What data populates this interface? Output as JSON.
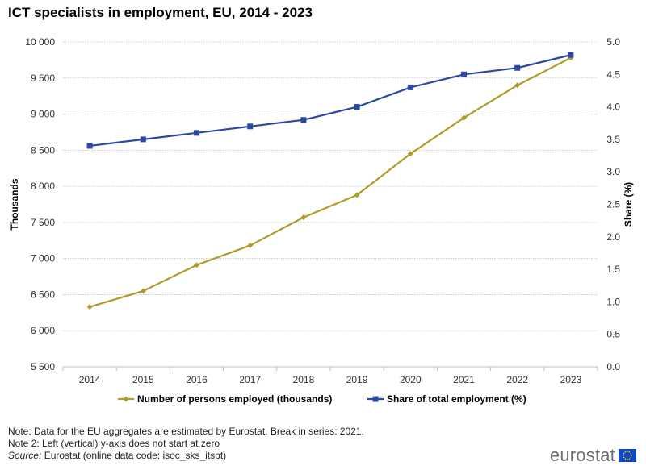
{
  "title": "ICT specialists in employment, EU, 2014 - 2023",
  "colors": {
    "persons": "#b09c2d",
    "share": "#2b48a4",
    "grid": "#bfbfbf",
    "flag": "#0e47cb",
    "logo_text": "#6d6e70"
  },
  "chart_data": {
    "type": "line",
    "categories": [
      "2014",
      "2015",
      "2016",
      "2017",
      "2018",
      "2019",
      "2020",
      "2021",
      "2022",
      "2023"
    ],
    "series": [
      {
        "name": "Number of persons employed (thousands)",
        "axis": "left",
        "marker": "diamond",
        "values": [
          6330,
          6550,
          6910,
          7180,
          7570,
          7880,
          8450,
          8950,
          9400,
          9780
        ]
      },
      {
        "name": "Share of total employment (%)",
        "axis": "right",
        "marker": "square",
        "values": [
          3.4,
          3.5,
          3.6,
          3.7,
          3.8,
          4.0,
          4.3,
          4.5,
          4.6,
          4.8
        ]
      }
    ],
    "ylabel": "Thousands",
    "ylabel_right": "Share (%)",
    "ylim": [
      5500,
      10000
    ],
    "ylim_right": [
      0.0,
      5.0
    ],
    "yticks": [
      5500,
      6000,
      6500,
      7000,
      7500,
      8000,
      8500,
      9000,
      9500,
      10000
    ],
    "yticks_labels": [
      "5 500",
      "6 000",
      "6 500",
      "7 000",
      "7 500",
      "8 000",
      "8 500",
      "9 000",
      "9 500",
      "10 000"
    ],
    "yticks_right_labels": [
      "0.0",
      "0.5",
      "1.0",
      "1.5",
      "2.0",
      "2.5",
      "3.0",
      "3.5",
      "4.0",
      "4.5",
      "5.0"
    ],
    "grid": true,
    "legend_position": "bottom"
  },
  "notes": {
    "line1": "Note: Data for the EU aggregates are estimated by Eurostat. Break in series: 2021.",
    "line2": "Note 2: Left (vertical) y-axis does not start at zero",
    "source_label": "Source:",
    "source_text": " Eurostat (online data code: isoc_sks_itspt)"
  },
  "logo": {
    "text": "eurostat"
  }
}
